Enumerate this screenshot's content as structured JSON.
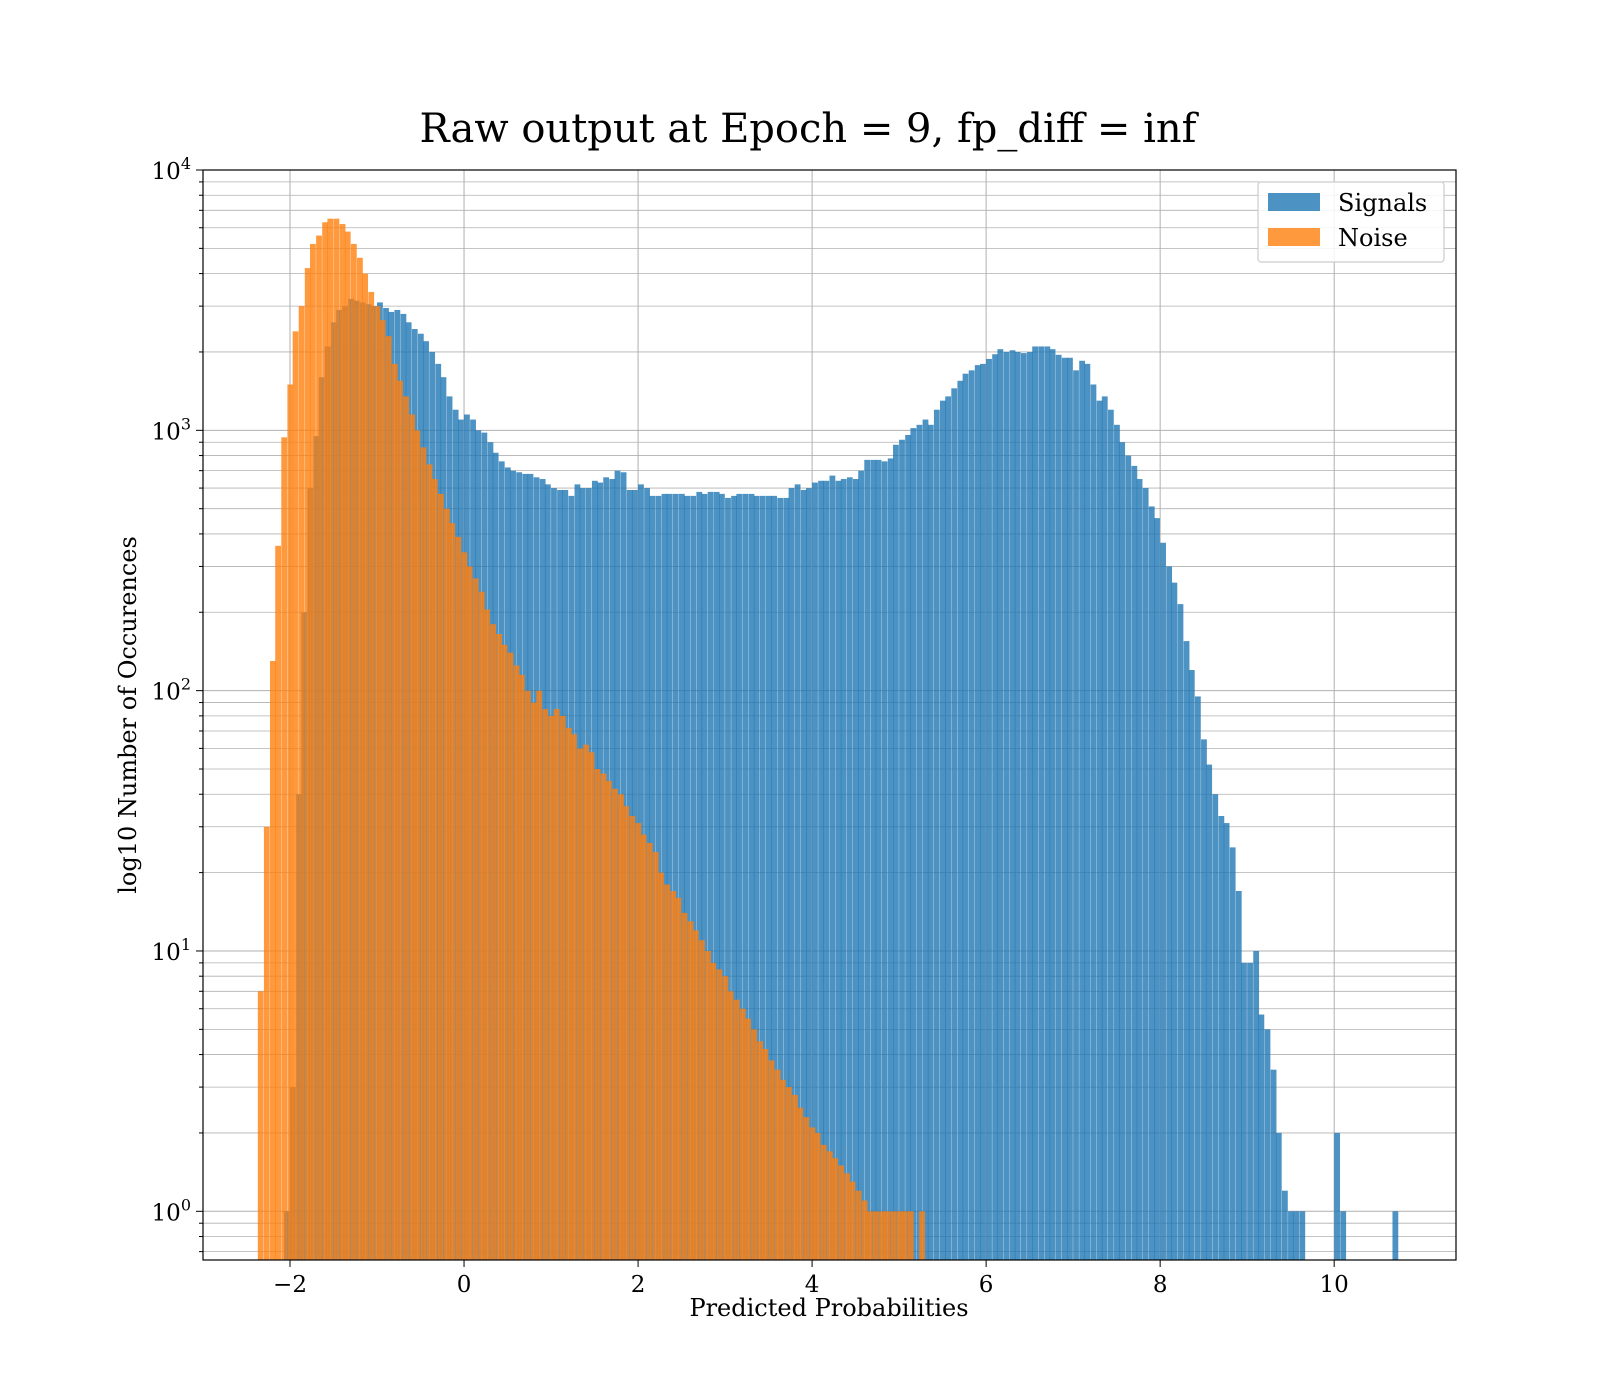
{
  "chart_data": {
    "type": "bar",
    "title": "Raw output at Epoch = 9, fp_diff = inf",
    "xlabel": "Predicted Probabilities",
    "ylabel": "log10 Number of Occurences",
    "xlim": [
      -3.0,
      11.4
    ],
    "ylim": [
      0.65,
      10000
    ],
    "yscale": "log",
    "grid": true,
    "legend_position": "top-right",
    "x_ticks": [
      {
        "value": -2,
        "label": "−2"
      },
      {
        "value": 0,
        "label": "0"
      },
      {
        "value": 2,
        "label": "2"
      },
      {
        "value": 4,
        "label": "4"
      },
      {
        "value": 6,
        "label": "6"
      },
      {
        "value": 8,
        "label": "8"
      },
      {
        "value": 10,
        "label": "10"
      }
    ],
    "y_ticks": [
      {
        "value": 1,
        "base": "10",
        "exp": "0"
      },
      {
        "value": 10,
        "base": "10",
        "exp": "1"
      },
      {
        "value": 100,
        "base": "10",
        "exp": "2"
      },
      {
        "value": 1000,
        "base": "10",
        "exp": "3"
      },
      {
        "value": 10000,
        "base": "10",
        "exp": "4"
      }
    ],
    "series": [
      {
        "name": "Signals",
        "color": "#1f77b4",
        "opacity": 0.8,
        "bins": [
          [
            -2.07,
            1.0
          ],
          [
            -2.0,
            3.0
          ],
          [
            -1.93,
            40
          ],
          [
            -1.87,
            200
          ],
          [
            -1.8,
            600
          ],
          [
            -1.73,
            950
          ],
          [
            -1.67,
            1600
          ],
          [
            -1.6,
            2100
          ],
          [
            -1.53,
            2600
          ],
          [
            -1.47,
            2900
          ],
          [
            -1.4,
            3000
          ],
          [
            -1.33,
            3200
          ],
          [
            -1.27,
            3150
          ],
          [
            -1.2,
            3100
          ],
          [
            -1.13,
            3050
          ],
          [
            -1.07,
            3000
          ],
          [
            -1.0,
            3100
          ],
          [
            -0.93,
            2950
          ],
          [
            -0.87,
            2850
          ],
          [
            -0.8,
            2900
          ],
          [
            -0.73,
            2800
          ],
          [
            -0.67,
            2600
          ],
          [
            -0.6,
            2450
          ],
          [
            -0.53,
            2350
          ],
          [
            -0.47,
            2200
          ],
          [
            -0.4,
            2000
          ],
          [
            -0.33,
            1800
          ],
          [
            -0.27,
            1600
          ],
          [
            -0.2,
            1350
          ],
          [
            -0.13,
            1200
          ],
          [
            -0.07,
            1100
          ],
          [
            0.0,
            1150
          ],
          [
            0.07,
            1100
          ],
          [
            0.13,
            1000
          ],
          [
            0.2,
            980
          ],
          [
            0.27,
            900
          ],
          [
            0.33,
            820
          ],
          [
            0.4,
            760
          ],
          [
            0.47,
            720
          ],
          [
            0.53,
            700
          ],
          [
            0.6,
            690
          ],
          [
            0.67,
            680
          ],
          [
            0.73,
            680
          ],
          [
            0.8,
            660
          ],
          [
            0.87,
            650
          ],
          [
            0.93,
            620
          ],
          [
            1.0,
            600
          ],
          [
            1.07,
            590
          ],
          [
            1.13,
            590
          ],
          [
            1.2,
            560
          ],
          [
            1.27,
            620
          ],
          [
            1.33,
            600
          ],
          [
            1.4,
            600
          ],
          [
            1.47,
            640
          ],
          [
            1.53,
            630
          ],
          [
            1.6,
            660
          ],
          [
            1.67,
            650
          ],
          [
            1.73,
            700
          ],
          [
            1.8,
            690
          ],
          [
            1.87,
            590
          ],
          [
            1.93,
            590
          ],
          [
            2.0,
            620
          ],
          [
            2.07,
            600
          ],
          [
            2.13,
            560
          ],
          [
            2.2,
            560
          ],
          [
            2.27,
            570
          ],
          [
            2.33,
            570
          ],
          [
            2.4,
            570
          ],
          [
            2.47,
            570
          ],
          [
            2.53,
            560
          ],
          [
            2.6,
            560
          ],
          [
            2.67,
            580
          ],
          [
            2.73,
            570
          ],
          [
            2.8,
            580
          ],
          [
            2.87,
            580
          ],
          [
            2.93,
            570
          ],
          [
            3.0,
            550
          ],
          [
            3.07,
            560
          ],
          [
            3.13,
            570
          ],
          [
            3.2,
            570
          ],
          [
            3.27,
            570
          ],
          [
            3.33,
            560
          ],
          [
            3.4,
            560
          ],
          [
            3.47,
            560
          ],
          [
            3.53,
            560
          ],
          [
            3.6,
            550
          ],
          [
            3.67,
            550
          ],
          [
            3.73,
            600
          ],
          [
            3.8,
            620
          ],
          [
            3.87,
            590
          ],
          [
            3.93,
            600
          ],
          [
            4.0,
            630
          ],
          [
            4.07,
            640
          ],
          [
            4.13,
            640
          ],
          [
            4.2,
            670
          ],
          [
            4.27,
            640
          ],
          [
            4.33,
            650
          ],
          [
            4.4,
            660
          ],
          [
            4.47,
            650
          ],
          [
            4.53,
            700
          ],
          [
            4.6,
            770
          ],
          [
            4.67,
            770
          ],
          [
            4.73,
            770
          ],
          [
            4.8,
            760
          ],
          [
            4.87,
            780
          ],
          [
            4.93,
            880
          ],
          [
            5.0,
            920
          ],
          [
            5.07,
            960
          ],
          [
            5.13,
            1020
          ],
          [
            5.2,
            1050
          ],
          [
            5.27,
            1100
          ],
          [
            5.33,
            1050
          ],
          [
            5.4,
            1200
          ],
          [
            5.47,
            1300
          ],
          [
            5.53,
            1350
          ],
          [
            5.6,
            1450
          ],
          [
            5.67,
            1550
          ],
          [
            5.73,
            1650
          ],
          [
            5.8,
            1700
          ],
          [
            5.87,
            1780
          ],
          [
            5.93,
            1800
          ],
          [
            6.0,
            1880
          ],
          [
            6.07,
            1960
          ],
          [
            6.13,
            2050
          ],
          [
            6.2,
            2000
          ],
          [
            6.27,
            2030
          ],
          [
            6.33,
            2000
          ],
          [
            6.4,
            1980
          ],
          [
            6.47,
            2000
          ],
          [
            6.53,
            2100
          ],
          [
            6.6,
            2100
          ],
          [
            6.67,
            2100
          ],
          [
            6.73,
            2050
          ],
          [
            6.8,
            1950
          ],
          [
            6.87,
            1900
          ],
          [
            6.93,
            1900
          ],
          [
            7.0,
            1700
          ],
          [
            7.07,
            1850
          ],
          [
            7.13,
            1800
          ],
          [
            7.2,
            1500
          ],
          [
            7.27,
            1300
          ],
          [
            7.33,
            1350
          ],
          [
            7.4,
            1200
          ],
          [
            7.47,
            1050
          ],
          [
            7.53,
            900
          ],
          [
            7.6,
            800
          ],
          [
            7.67,
            730
          ],
          [
            7.73,
            650
          ],
          [
            7.8,
            600
          ],
          [
            7.87,
            510
          ],
          [
            7.93,
            460
          ],
          [
            8.0,
            370
          ],
          [
            8.07,
            300
          ],
          [
            8.13,
            260
          ],
          [
            8.2,
            215
          ],
          [
            8.27,
            155
          ],
          [
            8.33,
            120
          ],
          [
            8.4,
            95
          ],
          [
            8.47,
            65
          ],
          [
            8.53,
            52
          ],
          [
            8.6,
            40
          ],
          [
            8.67,
            33
          ],
          [
            8.73,
            31
          ],
          [
            8.8,
            25
          ],
          [
            8.87,
            17
          ],
          [
            8.93,
            9
          ],
          [
            9.0,
            9
          ],
          [
            9.07,
            10
          ],
          [
            9.13,
            5.7
          ],
          [
            9.2,
            5.0
          ],
          [
            9.27,
            3.5
          ],
          [
            9.33,
            2.0
          ],
          [
            9.4,
            1.2
          ],
          [
            9.47,
            1.0
          ],
          [
            9.53,
            1.0
          ],
          [
            9.6,
            1.0
          ],
          [
            9.67,
            0.6
          ],
          [
            10.0,
            2.0
          ],
          [
            10.07,
            1.0
          ],
          [
            10.13,
            0.6
          ],
          [
            10.2,
            0.6
          ],
          [
            10.27,
            0.6
          ],
          [
            10.33,
            0.6
          ],
          [
            10.4,
            0.6
          ],
          [
            10.47,
            0.6
          ],
          [
            10.53,
            0.6
          ],
          [
            10.6,
            0.6
          ],
          [
            10.67,
            1.0
          ]
        ]
      },
      {
        "name": "Noise",
        "color": "#ff7f0e",
        "opacity": 0.8,
        "bins": [
          [
            -2.37,
            7
          ],
          [
            -2.3,
            30
          ],
          [
            -2.23,
            130
          ],
          [
            -2.17,
            360
          ],
          [
            -2.1,
            940
          ],
          [
            -2.03,
            1500
          ],
          [
            -1.97,
            2400
          ],
          [
            -1.9,
            3000
          ],
          [
            -1.83,
            4200
          ],
          [
            -1.77,
            5200
          ],
          [
            -1.7,
            5600
          ],
          [
            -1.63,
            6300
          ],
          [
            -1.57,
            6500
          ],
          [
            -1.5,
            6500
          ],
          [
            -1.43,
            6200
          ],
          [
            -1.37,
            5800
          ],
          [
            -1.3,
            5200
          ],
          [
            -1.23,
            4600
          ],
          [
            -1.17,
            4000
          ],
          [
            -1.1,
            3400
          ],
          [
            -1.03,
            3000
          ],
          [
            -0.97,
            2650
          ],
          [
            -0.9,
            2300
          ],
          [
            -0.83,
            1800
          ],
          [
            -0.77,
            1550
          ],
          [
            -0.7,
            1350
          ],
          [
            -0.63,
            1150
          ],
          [
            -0.57,
            1000
          ],
          [
            -0.5,
            860
          ],
          [
            -0.43,
            740
          ],
          [
            -0.37,
            650
          ],
          [
            -0.3,
            570
          ],
          [
            -0.23,
            500
          ],
          [
            -0.17,
            440
          ],
          [
            -0.1,
            390
          ],
          [
            -0.03,
            340
          ],
          [
            0.03,
            300
          ],
          [
            0.1,
            270
          ],
          [
            0.17,
            240
          ],
          [
            0.23,
            205
          ],
          [
            0.3,
            180
          ],
          [
            0.37,
            165
          ],
          [
            0.43,
            150
          ],
          [
            0.5,
            140
          ],
          [
            0.57,
            125
          ],
          [
            0.63,
            115
          ],
          [
            0.7,
            100
          ],
          [
            0.77,
            90
          ],
          [
            0.83,
            100
          ],
          [
            0.9,
            85
          ],
          [
            0.97,
            80
          ],
          [
            1.03,
            85
          ],
          [
            1.1,
            80
          ],
          [
            1.17,
            72
          ],
          [
            1.23,
            68
          ],
          [
            1.3,
            60
          ],
          [
            1.37,
            62
          ],
          [
            1.43,
            58
          ],
          [
            1.5,
            50
          ],
          [
            1.57,
            48
          ],
          [
            1.63,
            45
          ],
          [
            1.7,
            42
          ],
          [
            1.77,
            40
          ],
          [
            1.83,
            36
          ],
          [
            1.9,
            33
          ],
          [
            1.97,
            31
          ],
          [
            2.03,
            28
          ],
          [
            2.1,
            26
          ],
          [
            2.17,
            24
          ],
          [
            2.23,
            20
          ],
          [
            2.3,
            18
          ],
          [
            2.37,
            17
          ],
          [
            2.43,
            16
          ],
          [
            2.5,
            14
          ],
          [
            2.57,
            13
          ],
          [
            2.63,
            12
          ],
          [
            2.7,
            11
          ],
          [
            2.77,
            10
          ],
          [
            2.83,
            9
          ],
          [
            2.9,
            8.5
          ],
          [
            2.97,
            8
          ],
          [
            3.03,
            7
          ],
          [
            3.1,
            6.5
          ],
          [
            3.17,
            6
          ],
          [
            3.23,
            5.5
          ],
          [
            3.3,
            5
          ],
          [
            3.37,
            4.5
          ],
          [
            3.43,
            4.2
          ],
          [
            3.5,
            3.8
          ],
          [
            3.57,
            3.5
          ],
          [
            3.63,
            3.2
          ],
          [
            3.7,
            3.0
          ],
          [
            3.77,
            2.8
          ],
          [
            3.83,
            2.5
          ],
          [
            3.9,
            2.3
          ],
          [
            3.97,
            2.1
          ],
          [
            4.03,
            2.0
          ],
          [
            4.1,
            1.8
          ],
          [
            4.17,
            1.7
          ],
          [
            4.23,
            1.6
          ],
          [
            4.3,
            1.5
          ],
          [
            4.37,
            1.4
          ],
          [
            4.43,
            1.3
          ],
          [
            4.5,
            1.2
          ],
          [
            4.57,
            1.1
          ],
          [
            4.63,
            1.0
          ],
          [
            4.7,
            1.0
          ],
          [
            4.77,
            1.0
          ],
          [
            4.83,
            1.0
          ],
          [
            4.9,
            1.0
          ],
          [
            4.97,
            1.0
          ],
          [
            5.03,
            1.0
          ],
          [
            5.1,
            1.0
          ],
          [
            5.17,
            0.6
          ],
          [
            5.23,
            1.0
          ]
        ]
      }
    ]
  }
}
